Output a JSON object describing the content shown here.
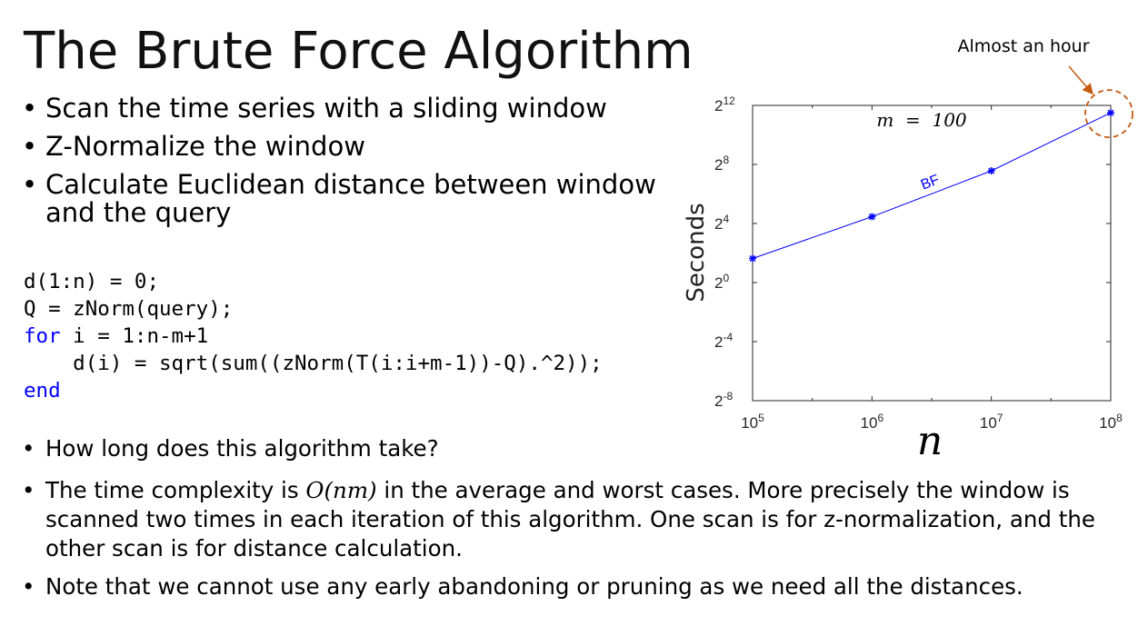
{
  "slide": {
    "title": "The Brute Force Algorithm",
    "bullets_top": [
      "Scan the time series with a sliding window",
      "Z-Normalize the window",
      "Calculate Euclidean distance between window and the query"
    ],
    "code": {
      "line1": "d(1:n) = 0;",
      "line2": "Q = zNorm(query);",
      "line3_kw": "for",
      "line3_rest": " i = 1:n-m+1",
      "line4": "    d(i) = sqrt(sum((zNorm(T(i:i+m-1))-Q).^2));",
      "line5_kw": "end"
    },
    "bullets_bottom": {
      "b1": "How long does this algorithm take?",
      "b2_pre": "The time complexity is ",
      "b2_math": "O(nm)",
      "b2_post": " in the average and worst cases. More precisely the window is scanned two times in each iteration of this algorithm. One scan is for z-normalization, and the other scan is for distance calculation.",
      "b3": "Note that we cannot use any early abandoning or pruning as we need all the distances."
    }
  },
  "chart_data": {
    "type": "line",
    "annotation_callout": "Almost an hour",
    "annotation_inplot": "m  =  100",
    "ylabel": "Seconds",
    "xlabel": "n",
    "x_scale": "log10",
    "y_scale": "log2",
    "xlim": [
      100000,
      100000000
    ],
    "ylim": [
      0.00390625,
      4096
    ],
    "x_ticks": [
      {
        "value": 100000,
        "base": "10",
        "exp": "5"
      },
      {
        "value": 1000000,
        "base": "10",
        "exp": "6"
      },
      {
        "value": 10000000,
        "base": "10",
        "exp": "7"
      },
      {
        "value": 100000000,
        "base": "10",
        "exp": "8"
      }
    ],
    "y_ticks": [
      {
        "value": 0.00390625,
        "base": "2",
        "exp": "-8"
      },
      {
        "value": 0.0625,
        "base": "2",
        "exp": "-4"
      },
      {
        "value": 1,
        "base": "2",
        "exp": "0"
      },
      {
        "value": 16,
        "base": "2",
        "exp": "4"
      },
      {
        "value": 256,
        "base": "2",
        "exp": "8"
      },
      {
        "value": 4096,
        "base": "2",
        "exp": "12"
      }
    ],
    "series": [
      {
        "name": "BF",
        "color": "#0000ff",
        "x": [
          100000,
          1000000,
          10000000,
          100000000
        ],
        "y": [
          3.1,
          22,
          190,
          2900
        ]
      }
    ],
    "highlight_color": "#c55a11"
  }
}
